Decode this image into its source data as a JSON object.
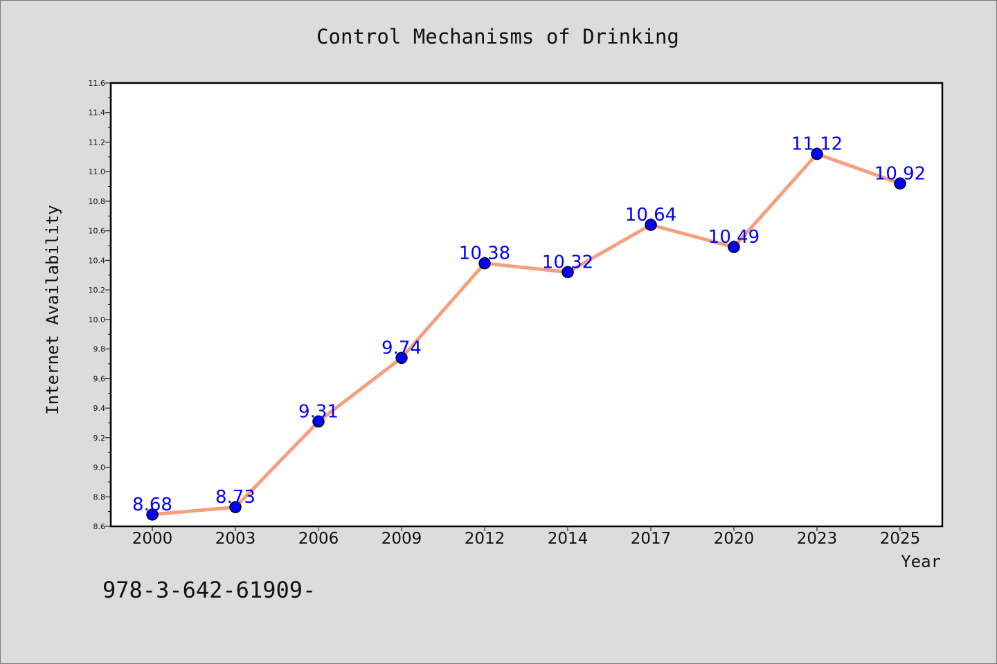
{
  "chart_data": {
    "type": "line",
    "title": "Control Mechanisms of Drinking",
    "xlabel": "Year",
    "ylabel": "Internet Availability",
    "categories": [
      "2000",
      "2003",
      "2006",
      "2009",
      "2012",
      "2014",
      "2017",
      "2020",
      "2023",
      "2025"
    ],
    "series": [
      {
        "values": [
          8.68,
          8.73,
          9.31,
          9.74,
          10.38,
          10.32,
          10.64,
          10.49,
          11.12,
          10.92
        ]
      }
    ],
    "ylim": [
      8.6,
      11.6
    ],
    "yticks": [
      "8.6",
      "8.8",
      "9.0",
      "9.2",
      "9.4",
      "9.6",
      "9.8",
      "10.0",
      "10.2",
      "10.4",
      "10.6",
      "10.8",
      "11.0",
      "11.2",
      "11.4",
      "11.6"
    ],
    "data_labels": [
      "8.68",
      "8.73",
      "9.31",
      "9.74",
      "10.38",
      "10.32",
      "10.64",
      "10.49",
      "11.12",
      "10.92"
    ],
    "grid": false,
    "line_color": "#f4a07e",
    "marker_color": "#0000ff",
    "label_color": "#0000ff"
  },
  "footer_text": "978-3-642-61909-"
}
